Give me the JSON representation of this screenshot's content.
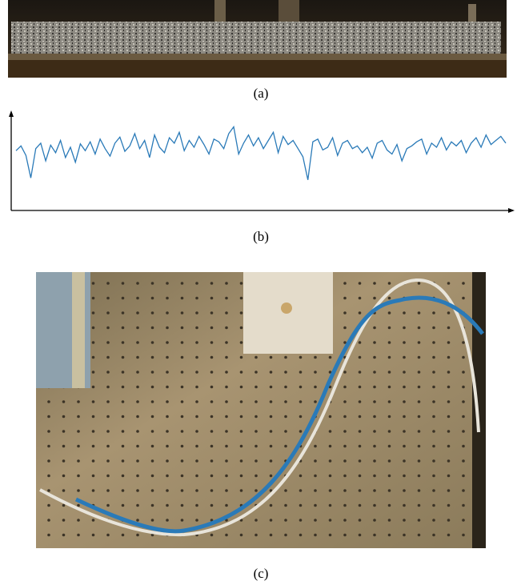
{
  "figure": {
    "captions": [
      "(a)",
      "(b)",
      "(c)"
    ],
    "signal": {
      "values": [
        55,
        62,
        48,
        15,
        58,
        66,
        40,
        63,
        52,
        70,
        45,
        60,
        38,
        65,
        55,
        68,
        50,
        72,
        58,
        47,
        66,
        75,
        54,
        62,
        80,
        58,
        70,
        45,
        78,
        60,
        52,
        74,
        66,
        82,
        55,
        70,
        60,
        76,
        64,
        50,
        72,
        68,
        58,
        80,
        90,
        50,
        66,
        78,
        62,
        74,
        58,
        70,
        82,
        52,
        76,
        64,
        70,
        58,
        46,
        12,
        68,
        72,
        56,
        60,
        74,
        48,
        66,
        70,
        58,
        62,
        52,
        60,
        44,
        66,
        70,
        56,
        50,
        64,
        40,
        58,
        62,
        68,
        72,
        50,
        66,
        60,
        74,
        56,
        68,
        62,
        70,
        52,
        66,
        74,
        60,
        78,
        64,
        70,
        76,
        66
      ],
      "color": "#2a7ab8"
    }
  }
}
